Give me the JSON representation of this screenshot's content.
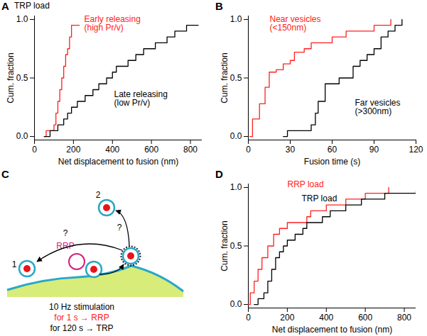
{
  "chart_data": [
    {
      "type": "line",
      "panel": "A",
      "title": "TRP load",
      "x_label": "Net displacement to fusion (nm)",
      "y_label": "Cum. fraction",
      "xlim": [
        0,
        860
      ],
      "ylim": [
        -0.03,
        1.03
      ],
      "xticks": [
        0,
        200,
        400,
        600,
        800
      ],
      "yticks": [
        {
          "value": 0,
          "label": "0.0"
        },
        {
          "value": 0.5,
          "label": "0.5"
        },
        {
          "value": 1,
          "label": "1.0"
        }
      ],
      "grid": false,
      "line_style": "step",
      "series": [
        {
          "name": "Early releasing (high Pr/v)",
          "color": "#ff2020",
          "x": [
            50,
            60,
            100,
            110,
            120,
            130,
            140,
            150,
            160,
            170,
            180,
            190,
            230
          ],
          "values": [
            0,
            0.05,
            0.1,
            0.2,
            0.3,
            0.4,
            0.5,
            0.6,
            0.7,
            0.75,
            0.85,
            0.95,
            0.95
          ]
        },
        {
          "name": "Late releasing (low Pr/v)",
          "color": "#000000",
          "x": [
            50,
            80,
            120,
            150,
            170,
            190,
            220,
            260,
            300,
            330,
            370,
            400,
            420,
            480,
            520,
            560,
            620,
            680,
            720,
            780,
            840
          ],
          "values": [
            0,
            0.05,
            0.1,
            0.15,
            0.2,
            0.25,
            0.3,
            0.35,
            0.4,
            0.45,
            0.5,
            0.55,
            0.6,
            0.65,
            0.7,
            0.75,
            0.8,
            0.85,
            0.9,
            0.95,
            0.95
          ]
        }
      ]
    },
    {
      "type": "line",
      "panel": "B",
      "x_label": "Fusion time (s)",
      "y_label": "Cum. fraction",
      "xlim": [
        0,
        120
      ],
      "ylim": [
        -0.03,
        1.03
      ],
      "xticks": [
        0,
        30,
        60,
        90,
        120
      ],
      "yticks": [
        {
          "value": 0,
          "label": "0.0"
        },
        {
          "value": 0.5,
          "label": "0.5"
        },
        {
          "value": 1,
          "label": "1.0"
        }
      ],
      "grid": false,
      "line_style": "step",
      "series": [
        {
          "name": "Near vesicles (<150nm)",
          "color": "#ff2020",
          "x": [
            1,
            3,
            8,
            12,
            15,
            20,
            25,
            30,
            33,
            40,
            45,
            60,
            70,
            90,
            102
          ],
          "values": [
            0,
            0.15,
            0.28,
            0.42,
            0.55,
            0.57,
            0.62,
            0.65,
            0.72,
            0.75,
            0.8,
            0.85,
            0.9,
            0.95,
            1.0
          ]
        },
        {
          "name": "Far vesicles (>300nm)",
          "color": "#000000",
          "x": [
            25,
            28,
            45,
            48,
            50,
            55,
            65,
            75,
            80,
            85,
            90,
            95,
            100,
            105,
            110
          ],
          "values": [
            0,
            0.05,
            0.1,
            0.2,
            0.3,
            0.45,
            0.5,
            0.6,
            0.65,
            0.7,
            0.75,
            0.85,
            0.9,
            0.95,
            1.0
          ]
        }
      ]
    },
    {
      "type": "line",
      "panel": "D",
      "x_label": "Net displacement to fusion (nm)",
      "y_label": "Cum. fraction",
      "xlim": [
        0,
        860
      ],
      "ylim": [
        -0.03,
        1.03
      ],
      "xticks": [
        0,
        200,
        400,
        600,
        800
      ],
      "yticks": [
        {
          "value": 0,
          "label": "0.0"
        },
        {
          "value": 0.5,
          "label": "0.5"
        },
        {
          "value": 1,
          "label": "1.0"
        }
      ],
      "grid": false,
      "line_style": "step",
      "series": [
        {
          "name": "RRP load",
          "color": "#ff2020",
          "x": [
            0,
            10,
            30,
            50,
            70,
            100,
            130,
            160,
            200,
            300,
            320,
            400,
            500,
            600,
            720
          ],
          "values": [
            0,
            0.1,
            0.2,
            0.3,
            0.4,
            0.5,
            0.6,
            0.65,
            0.7,
            0.75,
            0.8,
            0.85,
            0.9,
            0.95,
            1.0
          ]
        },
        {
          "name": "TRP load",
          "color": "#000000",
          "x": [
            30,
            50,
            80,
            100,
            120,
            140,
            160,
            180,
            200,
            240,
            280,
            300,
            380,
            420,
            500,
            580,
            700,
            860
          ],
          "values": [
            0,
            0.05,
            0.1,
            0.2,
            0.3,
            0.4,
            0.45,
            0.5,
            0.55,
            0.6,
            0.65,
            0.7,
            0.75,
            0.8,
            0.85,
            0.9,
            0.95,
            0.97
          ]
        }
      ]
    }
  ],
  "diagram": {
    "panel": "C",
    "vesicle_labels": [
      "1",
      "2"
    ],
    "questions": [
      "?",
      "?"
    ],
    "pool": "RRP",
    "stimulation": "10 Hz stimulation",
    "protocols": [
      {
        "text": "for 1 s → RRP",
        "color": "#ff2020"
      },
      {
        "text": "for 120 s → TRP",
        "color": "#000000"
      }
    ]
  }
}
